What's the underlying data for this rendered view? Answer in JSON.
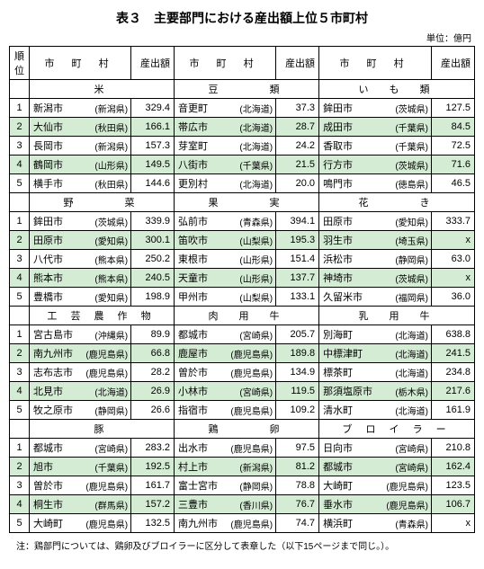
{
  "title": "表３　主要部門における産出額上位５市町村",
  "unit": "単位：億円",
  "headers": {
    "rank": "順位",
    "cityPref": "市 町 村",
    "value": "産出額"
  },
  "note": "注：鶏部門については、鶏卵及びブロイラーに区分して表章した（以下15ページまで同じ。）。",
  "sections": [
    {
      "categories": [
        "米",
        "豆　　　類",
        "い　も　類"
      ],
      "rows": [
        [
          {
            "c": "新潟市",
            "p": "(新潟県)",
            "v": "329.4"
          },
          {
            "c": "音更町",
            "p": "(北海道)",
            "v": "37.3"
          },
          {
            "c": "鉾田市",
            "p": "(茨城県)",
            "v": "127.5"
          }
        ],
        [
          {
            "c": "大仙市",
            "p": "(秋田県)",
            "v": "166.1"
          },
          {
            "c": "帯広市",
            "p": "(北海道)",
            "v": "28.7"
          },
          {
            "c": "成田市",
            "p": "(千葉県)",
            "v": "84.5"
          }
        ],
        [
          {
            "c": "長岡市",
            "p": "(新潟県)",
            "v": "157.3"
          },
          {
            "c": "芽室町",
            "p": "(北海道)",
            "v": "24.2"
          },
          {
            "c": "香取市",
            "p": "(千葉県)",
            "v": "72.5"
          }
        ],
        [
          {
            "c": "鶴岡市",
            "p": "(山形県)",
            "v": "149.5"
          },
          {
            "c": "八街市",
            "p": "(千葉県)",
            "v": "21.5"
          },
          {
            "c": "行方市",
            "p": "(茨城県)",
            "v": "71.6"
          }
        ],
        [
          {
            "c": "横手市",
            "p": "(秋田県)",
            "v": "144.6"
          },
          {
            "c": "更別村",
            "p": "(北海道)",
            "v": "20.0"
          },
          {
            "c": "鳴門市",
            "p": "(徳島県)",
            "v": "46.5"
          }
        ]
      ]
    },
    {
      "categories": [
        "野　　　菜",
        "果　　　実",
        "花　　　き"
      ],
      "rows": [
        [
          {
            "c": "鉾田市",
            "p": "(茨城県)",
            "v": "339.9"
          },
          {
            "c": "弘前市",
            "p": "(青森県)",
            "v": "394.1"
          },
          {
            "c": "田原市",
            "p": "(愛知県)",
            "v": "333.7"
          }
        ],
        [
          {
            "c": "田原市",
            "p": "(愛知県)",
            "v": "300.1"
          },
          {
            "c": "笛吹市",
            "p": "(山梨県)",
            "v": "195.3"
          },
          {
            "c": "羽生市",
            "p": "(埼玉県)",
            "v": "x"
          }
        ],
        [
          {
            "c": "八代市",
            "p": "(熊本県)",
            "v": "250.2"
          },
          {
            "c": "東根市",
            "p": "(山形県)",
            "v": "151.4"
          },
          {
            "c": "浜松市",
            "p": "(静岡県)",
            "v": "63.0"
          }
        ],
        [
          {
            "c": "熊本市",
            "p": "(熊本県)",
            "v": "240.5"
          },
          {
            "c": "天童市",
            "p": "(山形県)",
            "v": "137.7"
          },
          {
            "c": "神埼市",
            "p": "(茨城県)",
            "v": "x"
          }
        ],
        [
          {
            "c": "豊橋市",
            "p": "(愛知県)",
            "v": "198.9"
          },
          {
            "c": "甲州市",
            "p": "(山梨県)",
            "v": "133.1"
          },
          {
            "c": "久留米市",
            "p": "(福岡県)",
            "v": "36.0"
          }
        ]
      ]
    },
    {
      "categories": [
        "工 芸 農 作 物",
        "肉　用　牛",
        "乳　用　牛"
      ],
      "rows": [
        [
          {
            "c": "宮古島市",
            "p": "(沖縄県)",
            "v": "89.9"
          },
          {
            "c": "都城市",
            "p": "(宮崎県)",
            "v": "205.7"
          },
          {
            "c": "別海町",
            "p": "(北海道)",
            "v": "638.8"
          }
        ],
        [
          {
            "c": "南九州市",
            "p": "(鹿児島県)",
            "v": "66.8"
          },
          {
            "c": "鹿屋市",
            "p": "(鹿児島県)",
            "v": "189.8"
          },
          {
            "c": "中標津町",
            "p": "(北海道)",
            "v": "241.5"
          }
        ],
        [
          {
            "c": "志布志市",
            "p": "(鹿児島県)",
            "v": "28.2"
          },
          {
            "c": "曽於市",
            "p": "(鹿児島県)",
            "v": "134.9"
          },
          {
            "c": "標茶町",
            "p": "(北海道)",
            "v": "234.8"
          }
        ],
        [
          {
            "c": "北見市",
            "p": "(北海道)",
            "v": "26.9"
          },
          {
            "c": "小林市",
            "p": "(宮崎県)",
            "v": "119.5"
          },
          {
            "c": "那須塩原市",
            "p": "(栃木県)",
            "v": "217.6"
          }
        ],
        [
          {
            "c": "牧之原市",
            "p": "(静岡県)",
            "v": "26.6"
          },
          {
            "c": "指宿市",
            "p": "(鹿児島県)",
            "v": "109.2"
          },
          {
            "c": "清水町",
            "p": "(北海道)",
            "v": "161.9"
          }
        ]
      ]
    },
    {
      "categories": [
        "豚",
        "鶏　　　卵",
        "ブ ロ イ ラ ー"
      ],
      "rows": [
        [
          {
            "c": "都城市",
            "p": "(宮崎県)",
            "v": "283.2"
          },
          {
            "c": "出水市",
            "p": "(鹿児島県)",
            "v": "97.5"
          },
          {
            "c": "日向市",
            "p": "(宮崎県)",
            "v": "210.8"
          }
        ],
        [
          {
            "c": "旭市",
            "p": "(千葉県)",
            "v": "192.5"
          },
          {
            "c": "村上市",
            "p": "(新潟県)",
            "v": "81.2"
          },
          {
            "c": "都城市",
            "p": "(宮崎県)",
            "v": "162.4"
          }
        ],
        [
          {
            "c": "曽於市",
            "p": "(鹿児島県)",
            "v": "161.7"
          },
          {
            "c": "富士宮市",
            "p": "(静岡県)",
            "v": "78.8"
          },
          {
            "c": "大崎町",
            "p": "(鹿児島県)",
            "v": "123.5"
          }
        ],
        [
          {
            "c": "桐生市",
            "p": "(群馬県)",
            "v": "157.2"
          },
          {
            "c": "三豊市",
            "p": "(香川県)",
            "v": "76.7"
          },
          {
            "c": "垂水市",
            "p": "(鹿児島県)",
            "v": "106.7"
          }
        ],
        [
          {
            "c": "大崎町",
            "p": "(鹿児島県)",
            "v": "132.5"
          },
          {
            "c": "南九州市",
            "p": "(鹿児島県)",
            "v": "74.7"
          },
          {
            "c": "横浜町",
            "p": "(青森県)",
            "v": "x"
          }
        ]
      ]
    }
  ]
}
